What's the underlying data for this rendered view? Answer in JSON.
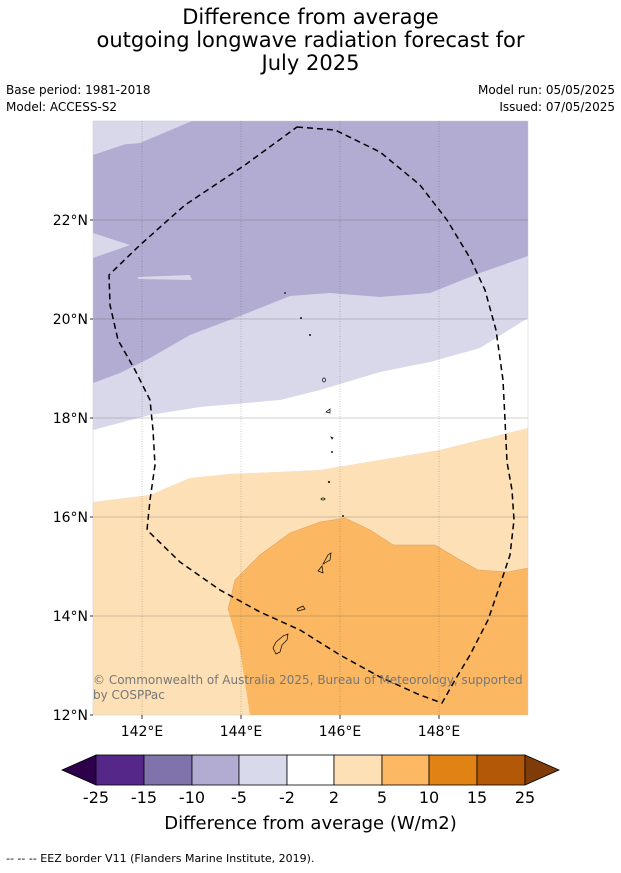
{
  "title": {
    "line1": "Difference from average",
    "line2": "outgoing longwave radiation forecast for",
    "line3": "July 2025"
  },
  "meta": {
    "base_period": "Base period: 1981-2018",
    "model": "Model: ACCESS-S2",
    "model_run": "Model run: 05/05/2025",
    "issued": "Issued: 07/05/2025"
  },
  "map": {
    "lat_labels": [
      "22°N",
      "20°N",
      "18°N",
      "16°N",
      "14°N",
      "12°N"
    ],
    "lon_labels": [
      "142°E",
      "144°E",
      "146°E",
      "148°E"
    ],
    "copyright_line1": "© Commonwealth of Australia 2025, Bureau of Meteorology, supported",
    "copyright_line2": "by COSPPac",
    "colors": {
      "purple_light": "#d8d8ea",
      "purple_mid": "#b2abd2",
      "white": "#ffffff",
      "orange_light": "#fde0b6",
      "orange_mid": "#fbb762"
    }
  },
  "colorbar": {
    "tick_labels": [
      "-25",
      "-15",
      "-10",
      "-5",
      "-2",
      "2",
      "5",
      "10",
      "15",
      "25"
    ],
    "colors": [
      "#2d004b",
      "#542788",
      "#8073ac",
      "#b2abd2",
      "#d8daeb",
      "#ffffff",
      "#fee0b6",
      "#fdb863",
      "#e08214",
      "#b35806",
      "#7f3b08"
    ],
    "title": "Difference from average (W/m2)"
  },
  "footer": "--  --  -- EEZ border V11 (Flanders Marine Institute, 2019)."
}
